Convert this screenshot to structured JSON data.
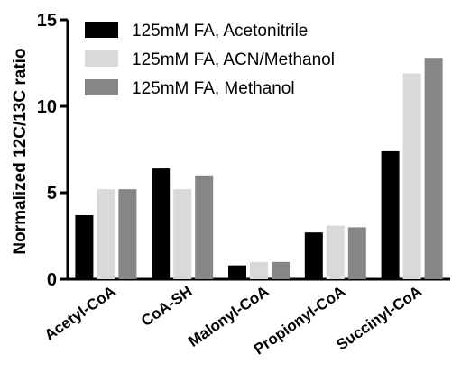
{
  "chart_data": {
    "type": "bar",
    "ylabel": "Normalized 12C/13C ratio",
    "ylim": [
      0,
      15
    ],
    "yticks": [
      "0",
      "5",
      "10",
      "15"
    ],
    "grid": false,
    "legend_position": "top-left",
    "categories": [
      "Acetyl-CoA",
      "CoA-SH",
      "Malonyl-CoA",
      "Propionyl-CoA",
      "Succinyl-CoA"
    ],
    "series": [
      {
        "name": "125mM FA, Acetonitrile",
        "color": "#000000",
        "values": [
          3.7,
          6.4,
          0.8,
          2.7,
          7.4
        ]
      },
      {
        "name": "125mM FA, ACN/Methanol",
        "color": "#d9d9d9",
        "values": [
          5.2,
          5.2,
          1.0,
          3.1,
          11.9
        ]
      },
      {
        "name": "125mM FA, Methanol",
        "color": "#868686",
        "values": [
          5.2,
          6.0,
          1.0,
          3.0,
          12.8
        ]
      }
    ]
  }
}
